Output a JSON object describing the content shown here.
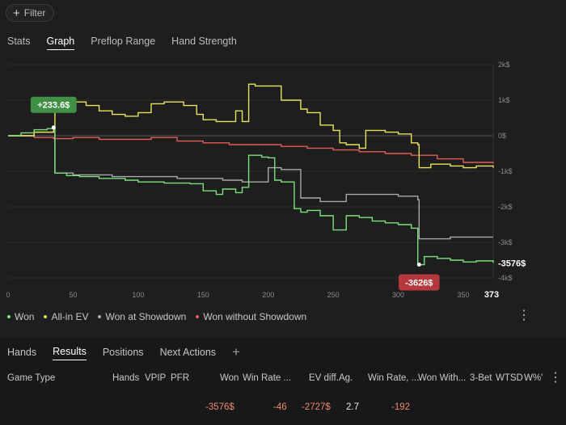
{
  "filter": {
    "label": "Filter",
    "icon": "plus-icon"
  },
  "tabs": [
    {
      "label": "Stats",
      "active": false
    },
    {
      "label": "Graph",
      "active": true
    },
    {
      "label": "Preflop Range",
      "active": false
    },
    {
      "label": "Hand Strength",
      "active": false
    }
  ],
  "chart_data": {
    "type": "line",
    "xlim": [
      0,
      373
    ],
    "x_ticks": [
      "0",
      "50",
      "100",
      "150",
      "200",
      "250",
      "300",
      "350"
    ],
    "x_end_label": "373",
    "ylim": [
      -4000,
      2000
    ],
    "y_ticks": [
      "2k$",
      "1k$",
      "0$",
      "-1k$",
      "-2k$",
      "-3k$",
      "-4k$"
    ],
    "grid": true,
    "legend_position": "bottom-left",
    "series": [
      {
        "name": "Won",
        "color": "#7be07b",
        "x": [
          0,
          10,
          20,
          30,
          35,
          36,
          45,
          55,
          70,
          90,
          100,
          120,
          140,
          150,
          160,
          165,
          175,
          180,
          185,
          195,
          200,
          205,
          210,
          220,
          225,
          230,
          240,
          250,
          255,
          260,
          270,
          280,
          290,
          300,
          310,
          315,
          316,
          320,
          330,
          340,
          350,
          360,
          373
        ],
        "y": [
          0,
          80,
          170,
          200,
          230,
          -1050,
          -1120,
          -1150,
          -1200,
          -1250,
          -1300,
          -1330,
          -1350,
          -1550,
          -1650,
          -1500,
          -1600,
          -1450,
          -550,
          -600,
          -620,
          -1250,
          -1300,
          -2050,
          -2150,
          -2100,
          -2250,
          -2650,
          -2650,
          -2250,
          -2300,
          -2400,
          -2450,
          -2500,
          -2600,
          -3600,
          -3626,
          -3400,
          -3450,
          -3500,
          -3550,
          -3520,
          -3576
        ]
      },
      {
        "name": "All-in EV",
        "color": "#e9e35b",
        "x": [
          0,
          20,
          35,
          36,
          45,
          60,
          70,
          80,
          90,
          100,
          110,
          120,
          135,
          145,
          150,
          160,
          175,
          180,
          185,
          190,
          200,
          210,
          225,
          230,
          240,
          250,
          255,
          260,
          270,
          275,
          280,
          290,
          300,
          310,
          315,
          316,
          325,
          340,
          350,
          360,
          373
        ],
        "y": [
          0,
          100,
          200,
          1000,
          950,
          850,
          700,
          600,
          550,
          650,
          900,
          950,
          850,
          600,
          450,
          400,
          700,
          400,
          1450,
          1400,
          1400,
          1000,
          750,
          650,
          300,
          150,
          -200,
          -250,
          -350,
          150,
          150,
          100,
          50,
          -200,
          -250,
          -900,
          -800,
          -850,
          -900,
          -850,
          -900
        ]
      },
      {
        "name": "Won at Showdown",
        "color": "#a9a9a9",
        "x": [
          0,
          20,
          35,
          36,
          50,
          80,
          100,
          130,
          160,
          165,
          180,
          185,
          200,
          210,
          220,
          225,
          235,
          240,
          255,
          260,
          270,
          290,
          300,
          315,
          316,
          340,
          373
        ],
        "y": [
          0,
          100,
          230,
          -1050,
          -1100,
          -1150,
          -1150,
          -1200,
          -1200,
          -1250,
          -1300,
          -1300,
          -900,
          -950,
          -950,
          -1750,
          -1750,
          -1850,
          -1850,
          -1650,
          -1650,
          -1650,
          -1700,
          -1800,
          -2900,
          -2850,
          -2850
        ]
      },
      {
        "name": "Won without Showdown",
        "color": "#e35b5b",
        "x": [
          0,
          20,
          35,
          50,
          70,
          90,
          110,
          130,
          150,
          170,
          190,
          210,
          230,
          250,
          270,
          290,
          310,
          330,
          350,
          373
        ],
        "y": [
          0,
          -50,
          -80,
          -50,
          -100,
          -100,
          -50,
          -150,
          -200,
          -250,
          -250,
          -300,
          -350,
          -400,
          -450,
          -500,
          -550,
          -650,
          -750,
          -780
        ]
      }
    ],
    "annotations": [
      {
        "label": "+233.6$",
        "x": 35,
        "y": 233.6,
        "color": "#3f8f45"
      },
      {
        "label": "-3626$",
        "x": 316,
        "y": -3626,
        "color": "#b5383d"
      }
    ],
    "end_label": "-3576$"
  },
  "chart_menu_icon": "more-vertical-icon",
  "legend_menu_icon": "more-vertical-icon",
  "bottom_tabs": [
    {
      "label": "Hands",
      "active": false
    },
    {
      "label": "Results",
      "active": true
    },
    {
      "label": "Positions",
      "active": false
    },
    {
      "label": "Next Actions",
      "active": false
    }
  ],
  "add_tab_icon": "plus-icon",
  "table": {
    "headers": [
      "Game Type",
      "Hands",
      "VPIP",
      "PFR",
      "Won",
      "Win Rate ...",
      "EV diff.",
      "Ag.",
      "Win Rate, ...",
      "Won With...",
      "3-Bet",
      "WTSD",
      "W%'"
    ],
    "row": {
      "won": "-3576$",
      "win_rate": "-46",
      "ev_diff": "-2727$",
      "ag": "2.7",
      "win_rate2": "-192"
    }
  },
  "table_menu_icon": "more-vertical-icon"
}
